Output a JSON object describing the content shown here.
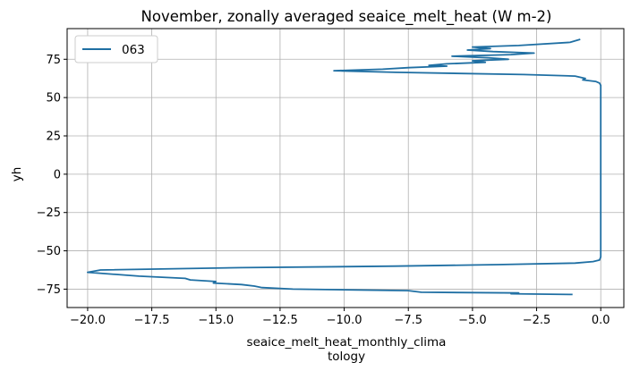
{
  "chart_data": {
    "type": "line",
    "title": "November, zonally averaged seaice_melt_heat (W m-2)",
    "xlabel": [
      "seaice_melt_heat_monthly_clima",
      "tology"
    ],
    "ylabel": "yh",
    "xlim": [
      -20.8,
      0.9
    ],
    "ylim": [
      -87,
      95
    ],
    "xticks": [
      -20.0,
      -17.5,
      -15.0,
      -12.5,
      -10.0,
      -7.5,
      -5.0,
      -2.5,
      0.0
    ],
    "xtick_labels": [
      "−20.0",
      "−17.5",
      "−15.0",
      "−12.5",
      "−10.0",
      "−7.5",
      "−5.0",
      "−2.5",
      "0.0"
    ],
    "yticks": [
      -75,
      -50,
      -25,
      0,
      25,
      50,
      75
    ],
    "ytick_labels": [
      "−75",
      "−50",
      "−25",
      "0",
      "25",
      "50",
      "75"
    ],
    "grid": true,
    "legend": "upper-left",
    "color": "#1f6fa3",
    "series": [
      {
        "name": "063",
        "x": [
          -1.1,
          -3.5,
          -3.2,
          -7.0,
          -7.5,
          -12.0,
          -13.2,
          -13.5,
          -14.0,
          -15.1,
          -15.0,
          -16.0,
          -16.2,
          -18.0,
          -20.0,
          -19.5,
          -14.0,
          -8.0,
          -4.0,
          -1.0,
          -0.3,
          -0.05,
          0.0,
          0.0,
          0.0,
          0.0,
          0.0,
          0.0,
          0.0,
          0.0,
          -0.05,
          -0.2,
          -0.7,
          -0.6,
          -1.0,
          -3.0,
          -8.0,
          -10.4,
          -8.5,
          -7.5,
          -6.0,
          -6.7,
          -6.0,
          -4.5,
          -5.0,
          -3.6,
          -4.4,
          -5.8,
          -3.5,
          -2.6,
          -4.2,
          -5.2,
          -4.3,
          -5.0,
          -3.2,
          -1.2,
          -0.8
        ],
        "y": [
          -78.5,
          -78.0,
          -77.5,
          -77.0,
          -76.0,
          -75.0,
          -74.0,
          -73.0,
          -72.0,
          -71.0,
          -70.0,
          -69.0,
          -68.0,
          -66.5,
          -64.0,
          -62.5,
          -61.0,
          -60.0,
          -59.0,
          -58.0,
          -57.0,
          -56.0,
          -54.0,
          -40.0,
          -20.0,
          0.0,
          20.0,
          40.0,
          55.0,
          58.0,
          59.5,
          60.5,
          61.5,
          62.5,
          64.0,
          65.0,
          66.5,
          67.5,
          68.5,
          69.5,
          70.5,
          71.0,
          72.0,
          73.0,
          74.0,
          75.0,
          76.0,
          77.0,
          78.0,
          79.0,
          80.0,
          81.0,
          82.0,
          83.0,
          84.0,
          86.0,
          88.0
        ]
      }
    ]
  }
}
